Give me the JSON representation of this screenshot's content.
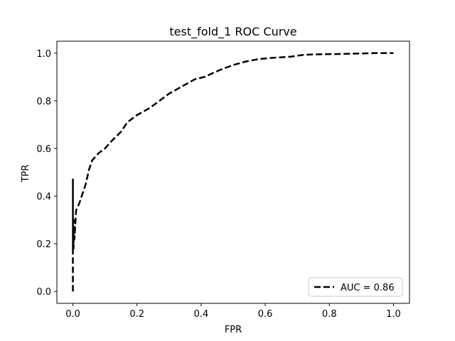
{
  "chart_data": {
    "type": "line",
    "title": "test_fold_1 ROC Curve",
    "xlabel": "FPR",
    "ylabel": "TPR",
    "xlim": [
      -0.05,
      1.05
    ],
    "ylim": [
      -0.05,
      1.05
    ],
    "x_ticks": [
      0.0,
      0.2,
      0.4,
      0.6,
      0.8,
      1.0
    ],
    "x_tick_labels": [
      "0.0",
      "0.2",
      "0.4",
      "0.6",
      "0.8",
      "1.0"
    ],
    "y_ticks": [
      0.0,
      0.2,
      0.4,
      0.6,
      0.8,
      1.0
    ],
    "y_tick_labels": [
      "0.0",
      "0.2",
      "0.4",
      "0.6",
      "0.8",
      "1.0"
    ],
    "grid": false,
    "legend_position": "lower-right",
    "series": [
      {
        "name": "AUC = 0.86",
        "color": "#000000",
        "line_style": "dashed",
        "x": [
          0.0,
          0.0,
          0.0,
          0.0,
          0.002,
          0.002,
          0.004,
          0.005,
          0.01,
          0.02,
          0.03,
          0.04,
          0.05,
          0.06,
          0.08,
          0.1,
          0.12,
          0.15,
          0.17,
          0.2,
          0.24,
          0.27,
          0.3,
          0.34,
          0.38,
          0.41,
          0.46,
          0.5,
          0.54,
          0.58,
          0.62,
          0.68,
          0.72,
          0.76,
          0.82,
          0.88,
          0.94,
          1.0
        ],
        "y": [
          0.0,
          0.2,
          0.47,
          0.18,
          0.25,
          0.18,
          0.3,
          0.22,
          0.34,
          0.37,
          0.41,
          0.45,
          0.51,
          0.55,
          0.58,
          0.6,
          0.63,
          0.67,
          0.71,
          0.74,
          0.77,
          0.8,
          0.83,
          0.86,
          0.89,
          0.9,
          0.93,
          0.95,
          0.965,
          0.975,
          0.98,
          0.985,
          0.993,
          0.995,
          0.996,
          0.998,
          1.0,
          1.0
        ]
      }
    ]
  }
}
